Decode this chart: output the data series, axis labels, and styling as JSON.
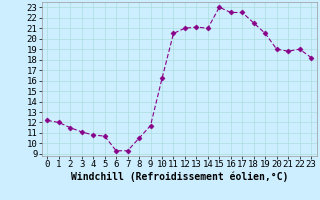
{
  "x": [
    0,
    1,
    2,
    3,
    4,
    5,
    6,
    7,
    8,
    9,
    10,
    11,
    12,
    13,
    14,
    15,
    16,
    17,
    18,
    19,
    20,
    21,
    22,
    23
  ],
  "y": [
    12.2,
    12.0,
    11.5,
    11.1,
    10.8,
    10.7,
    9.3,
    9.3,
    10.5,
    11.7,
    16.2,
    20.5,
    21.0,
    21.1,
    21.0,
    23.0,
    22.5,
    22.5,
    21.5,
    20.5,
    19.0,
    18.8,
    19.0,
    18.2
  ],
  "line_color": "#880088",
  "marker": "D",
  "marker_size": 2.5,
  "bg_color": "#cceeff",
  "grid_color": "#aadddd",
  "xlabel": "Windchill (Refroidissement éolien,°C)",
  "xlabel_fontsize": 7,
  "tick_fontsize": 6.5,
  "ylim": [
    8.8,
    23.5
  ],
  "xlim": [
    -0.5,
    23.5
  ],
  "yticks": [
    9,
    10,
    11,
    12,
    13,
    14,
    15,
    16,
    17,
    18,
    19,
    20,
    21,
    22,
    23
  ],
  "xticks": [
    0,
    1,
    2,
    3,
    4,
    5,
    6,
    7,
    8,
    9,
    10,
    11,
    12,
    13,
    14,
    15,
    16,
    17,
    18,
    19,
    20,
    21,
    22,
    23
  ],
  "xtick_labels": [
    "0",
    "1",
    "2",
    "3",
    "4",
    "5",
    "6",
    "7",
    "8",
    "9",
    "10",
    "11",
    "12",
    "13",
    "14",
    "15",
    "16",
    "17",
    "18",
    "19",
    "20",
    "21",
    "22",
    "23"
  ]
}
